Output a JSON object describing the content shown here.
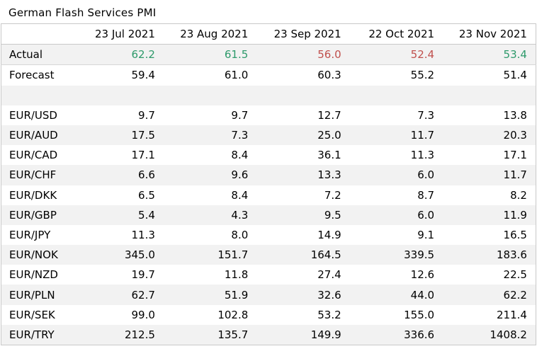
{
  "title": "German Flash Services PMI",
  "colors": {
    "beat": "#2e9a6b",
    "miss": "#c0504d",
    "shade": "#f2f2f2"
  },
  "dates": [
    "23 Jul 2021",
    "23 Aug 2021",
    "23 Sep 2021",
    "22 Oct 2021",
    "23 Nov 2021"
  ],
  "actual": {
    "label": "Actual",
    "values": [
      "62.2",
      "61.5",
      "56.0",
      "52.4",
      "53.4"
    ],
    "status": [
      "beat",
      "beat",
      "miss",
      "miss",
      "beat"
    ]
  },
  "forecast": {
    "label": "Forecast",
    "values": [
      "59.4",
      "61.0",
      "60.3",
      "55.2",
      "51.4"
    ]
  },
  "pairs": [
    {
      "label": "EUR/USD",
      "values": [
        "9.7",
        "9.7",
        "12.7",
        "7.3",
        "13.8"
      ]
    },
    {
      "label": "EUR/AUD",
      "values": [
        "17.5",
        "7.3",
        "25.0",
        "11.7",
        "20.3"
      ]
    },
    {
      "label": "EUR/CAD",
      "values": [
        "17.1",
        "8.4",
        "36.1",
        "11.3",
        "17.1"
      ]
    },
    {
      "label": "EUR/CHF",
      "values": [
        "6.6",
        "9.6",
        "13.3",
        "6.0",
        "11.7"
      ]
    },
    {
      "label": "EUR/DKK",
      "values": [
        "6.5",
        "8.4",
        "7.2",
        "8.7",
        "8.2"
      ]
    },
    {
      "label": "EUR/GBP",
      "values": [
        "5.4",
        "4.3",
        "9.5",
        "6.0",
        "11.9"
      ]
    },
    {
      "label": "EUR/JPY",
      "values": [
        "11.3",
        "8.0",
        "14.9",
        "9.1",
        "16.5"
      ]
    },
    {
      "label": "EUR/NOK",
      "values": [
        "345.0",
        "151.7",
        "164.5",
        "339.5",
        "183.6"
      ]
    },
    {
      "label": "EUR/NZD",
      "values": [
        "19.7",
        "11.8",
        "27.4",
        "12.6",
        "22.5"
      ]
    },
    {
      "label": "EUR/PLN",
      "values": [
        "62.7",
        "51.9",
        "32.6",
        "44.0",
        "62.2"
      ]
    },
    {
      "label": "EUR/SEK",
      "values": [
        "99.0",
        "102.8",
        "53.2",
        "155.0",
        "211.4"
      ]
    },
    {
      "label": "EUR/TRY",
      "values": [
        "212.5",
        "135.7",
        "149.9",
        "336.6",
        "1408.2"
      ]
    }
  ]
}
